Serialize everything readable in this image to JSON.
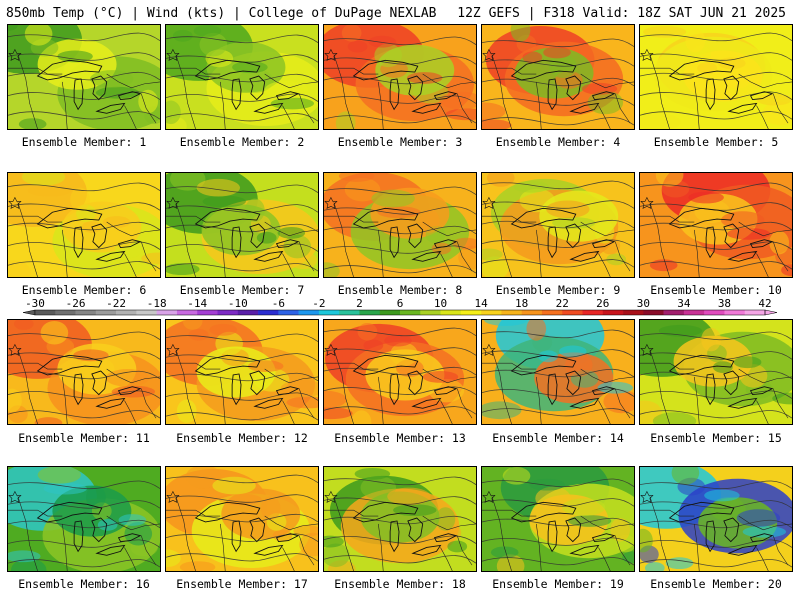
{
  "header": {
    "left_title": "850mb Temp (°C) | Wind (kts) | College of DuPage NEXLAB",
    "right_title": "12Z GEFS | F318 Valid: 18Z SAT JUN 21 2025"
  },
  "members": [
    {
      "label": "Ensemble Member: 1",
      "base": "#b5d62a",
      "blobs": [
        "#3d9a1e",
        "#7fbd23",
        "#e8ef1b"
      ]
    },
    {
      "label": "Ensemble Member: 2",
      "base": "#c9e01f",
      "blobs": [
        "#4da71f",
        "#e6ec1a",
        "#8cc424"
      ]
    },
    {
      "label": "Ensemble Member: 3",
      "base": "#f8a21c",
      "blobs": [
        "#ef4026",
        "#f57022",
        "#a9d124"
      ]
    },
    {
      "label": "Ensemble Member: 4",
      "base": "#f9b51c",
      "blobs": [
        "#ef4026",
        "#f56b22",
        "#7ebb23"
      ]
    },
    {
      "label": "Ensemble Member: 5",
      "base": "#f1ee19",
      "blobs": [
        "#f8d21d",
        "#f0ea1a",
        "#fbe31b"
      ]
    },
    {
      "label": "Ensemble Member: 6",
      "base": "#f8d71c",
      "blobs": [
        "#f7b91c",
        "#d8e61b",
        "#f9cd1c"
      ]
    },
    {
      "label": "Ensemble Member: 7",
      "base": "#c4df1e",
      "blobs": [
        "#3d9a1e",
        "#f8c71c",
        "#8cc424"
      ]
    },
    {
      "label": "Ensemble Member: 8",
      "base": "#f7b21c",
      "blobs": [
        "#f57022",
        "#90c524",
        "#f89b1c"
      ]
    },
    {
      "label": "Ensemble Member: 9",
      "base": "#f7c31c",
      "blobs": [
        "#a9d124",
        "#f59a1d",
        "#e4ea1b"
      ]
    },
    {
      "label": "Ensemble Member: 10",
      "base": "#f7941d",
      "blobs": [
        "#ec2a26",
        "#f05a22",
        "#f9c41c"
      ]
    },
    {
      "label": "Ensemble Member: 11",
      "base": "#f8b91c",
      "blobs": [
        "#f05a22",
        "#f7901d",
        "#f9cf1c"
      ]
    },
    {
      "label": "Ensemble Member: 12",
      "base": "#f9c51c",
      "blobs": [
        "#f57022",
        "#f59a1d",
        "#e9ed1a"
      ]
    },
    {
      "label": "Ensemble Member: 13",
      "base": "#f8a71c",
      "blobs": [
        "#ef4026",
        "#f57022",
        "#f9cb1c"
      ]
    },
    {
      "label": "Ensemble Member: 14",
      "base": "#f8b01c",
      "blobs": [
        "#1ec8dc",
        "#3fb57a",
        "#f57022"
      ]
    },
    {
      "label": "Ensemble Member: 15",
      "base": "#d4e31c",
      "blobs": [
        "#3d9a1e",
        "#7ebb23",
        "#f8c51c"
      ]
    },
    {
      "label": "Ensemble Member: 16",
      "base": "#4fab21",
      "blobs": [
        "#2ec5c6",
        "#8cc424",
        "#1a9b4a"
      ]
    },
    {
      "label": "Ensemble Member: 17",
      "base": "#f8c11c",
      "blobs": [
        "#f7941d",
        "#e6ec1a",
        "#f59a1d"
      ]
    },
    {
      "label": "Ensemble Member: 18",
      "base": "#c2dd1f",
      "blobs": [
        "#3d9a1e",
        "#f7a71c",
        "#82be24"
      ]
    },
    {
      "label": "Ensemble Member: 19",
      "base": "#63b322",
      "blobs": [
        "#2a9a3e",
        "#c5df1e",
        "#f8c11c"
      ]
    },
    {
      "label": "Ensemble Member: 20",
      "base": "#f4d01c",
      "blobs": [
        "#1ec8dc",
        "#2c3fc8",
        "#6ab722"
      ]
    }
  ],
  "colorbar": {
    "ticks": [
      "-30",
      "-26",
      "-22",
      "-18",
      "-14",
      "-10",
      "-6",
      "-2",
      "2",
      "6",
      "10",
      "14",
      "18",
      "22",
      "26",
      "30",
      "34",
      "38",
      "42"
    ],
    "colors": [
      "#5a5a5a",
      "#707070",
      "#868686",
      "#9c9c9c",
      "#b2b2b2",
      "#c8c8c8",
      "#d9a3e8",
      "#c86ae0",
      "#a43fd3",
      "#7d2bc4",
      "#5a1fa8",
      "#2b2dd1",
      "#2d62e6",
      "#1d97ee",
      "#1ec8dc",
      "#29c29b",
      "#2aa64b",
      "#3d9a1e",
      "#6ab722",
      "#a9d124",
      "#d9e61b",
      "#f5ef19",
      "#f8d21d",
      "#f7b41c",
      "#f7941d",
      "#f5701f",
      "#f04c23",
      "#e82626",
      "#c8141d",
      "#a8101a",
      "#8a0c2a",
      "#a21e6e",
      "#c83296",
      "#e04cbe",
      "#f07ad8",
      "#f4a6e6"
    ]
  }
}
